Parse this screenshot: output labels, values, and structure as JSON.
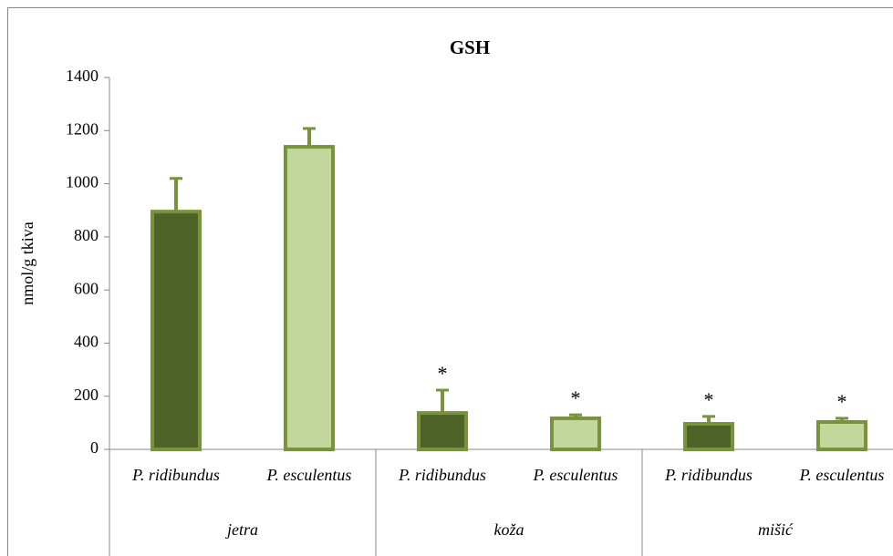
{
  "chart_data": {
    "type": "bar",
    "title": "GSH",
    "y_label": "nmol/g tkiva",
    "categories": [
      "jetra",
      "koža",
      "mišić"
    ],
    "series": [
      {
        "name": "P. ridibundus",
        "color": "#4f6228",
        "edge_color": "#77933c",
        "values": [
          895,
          137,
          96
        ],
        "errors": [
          125,
          86,
          28
        ],
        "annotations": [
          null,
          "*",
          "*"
        ]
      },
      {
        "name": "P. esculentus",
        "color": "#c3d69b",
        "edge_color": "#77933c",
        "values": [
          1139,
          117,
          103
        ],
        "errors": [
          69,
          13,
          14
        ],
        "annotations": [
          null,
          "*",
          "*"
        ]
      }
    ],
    "ylim": [
      0,
      1400
    ],
    "yticks": [
      0,
      200,
      400,
      600,
      800,
      1000,
      1200,
      1400
    ],
    "grid": false
  }
}
